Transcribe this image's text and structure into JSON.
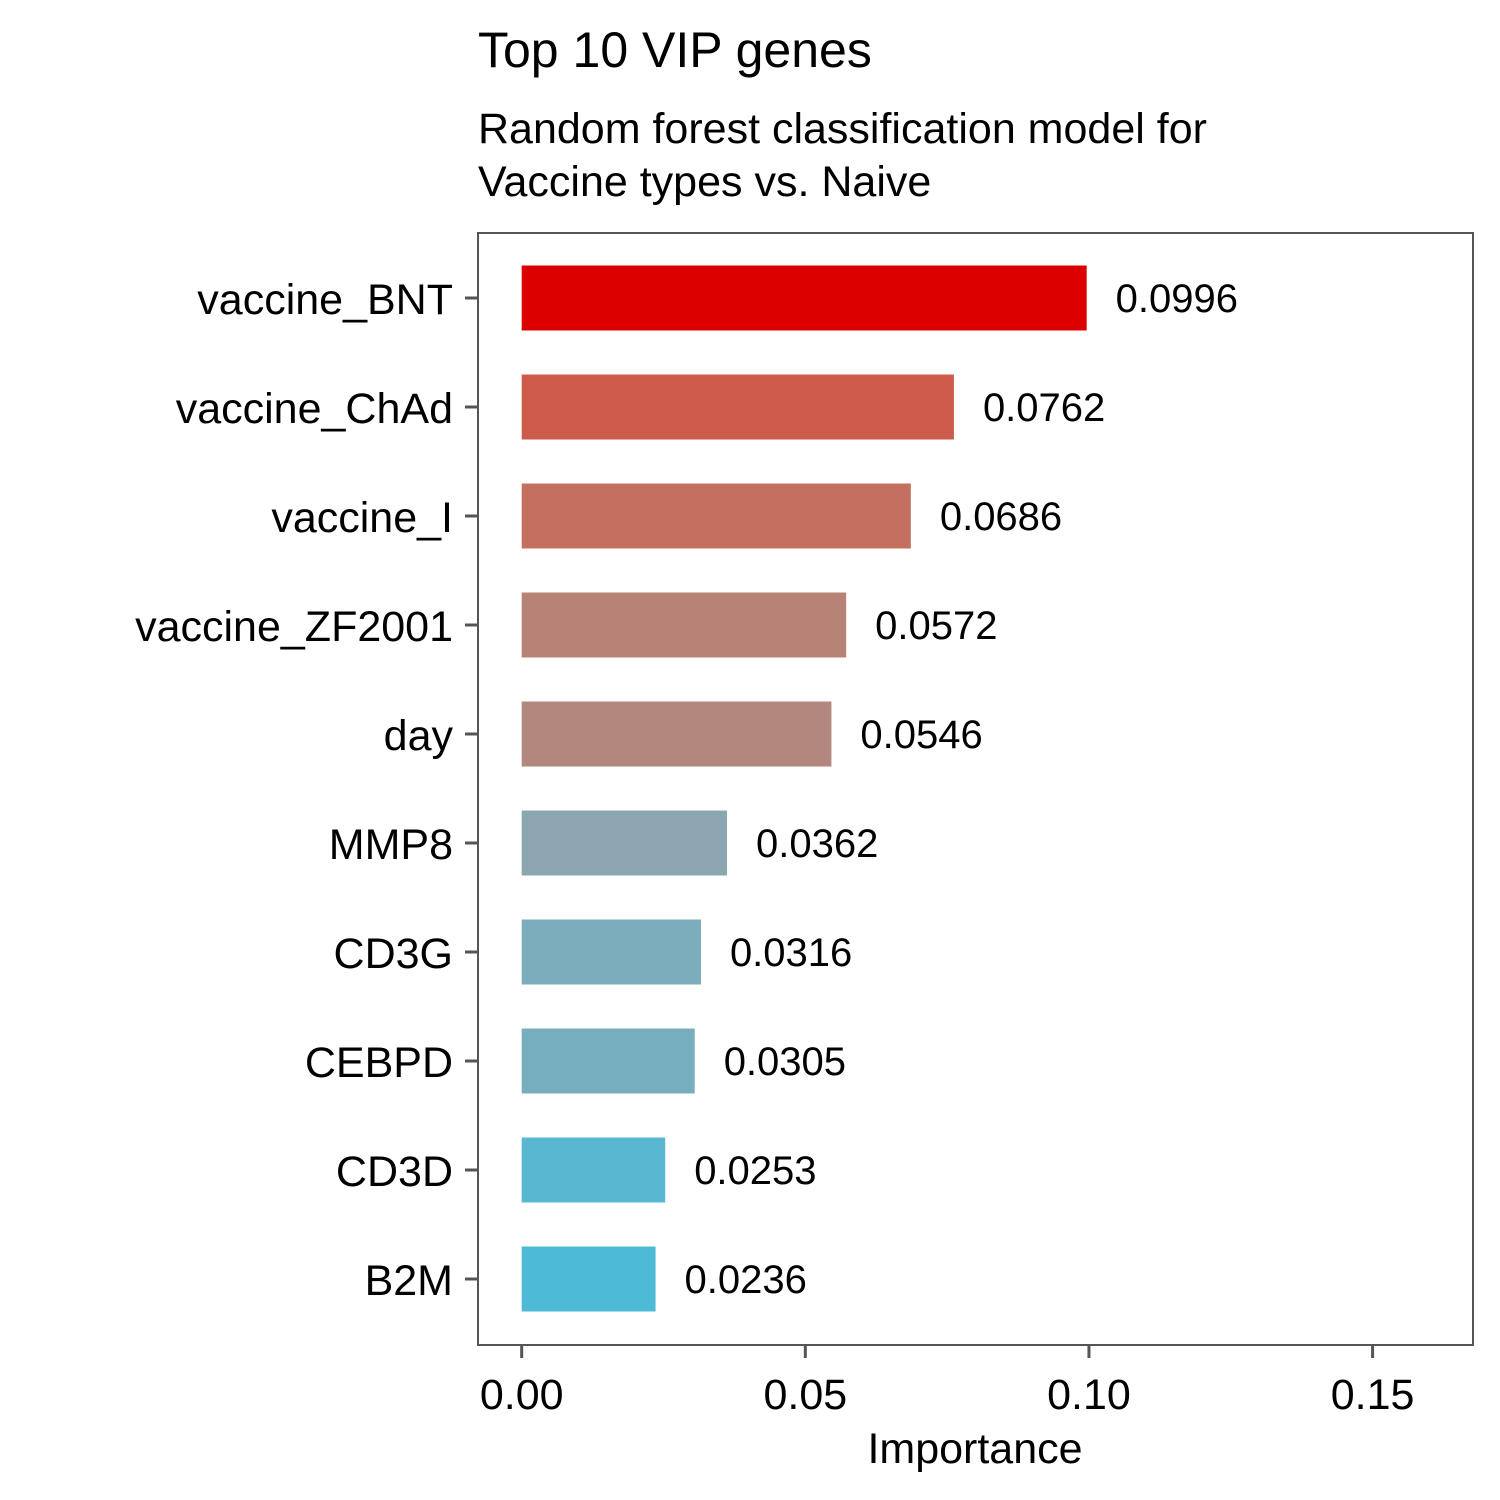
{
  "chart_data": {
    "type": "bar",
    "orientation": "horizontal",
    "title": "Top 10 VIP genes",
    "subtitle_lines": [
      "Random forest classification model for",
      "Vaccine types vs. Naive"
    ],
    "xlabel": "Importance",
    "ylabel": "",
    "xlim": [
      -0.0077,
      0.1677
    ],
    "xticks": [
      0.0,
      0.05,
      0.1,
      0.15
    ],
    "xtick_labels": [
      "0.00",
      "0.05",
      "0.10",
      "0.15"
    ],
    "grid": false,
    "legend": "none",
    "categories": [
      "vaccine_BNT",
      "vaccine_ChAd",
      "vaccine_I",
      "vaccine_ZF2001",
      "day",
      "MMP8",
      "CD3G",
      "CEBPD",
      "CD3D",
      "B2M"
    ],
    "values": [
      0.0996,
      0.0762,
      0.0686,
      0.0572,
      0.0546,
      0.0362,
      0.0316,
      0.0305,
      0.0253,
      0.0236
    ],
    "value_labels": [
      "0.0996",
      "0.0762",
      "0.0686",
      "0.0572",
      "0.0546",
      "0.0362",
      "0.0316",
      "0.0305",
      "0.0253",
      "0.0236"
    ],
    "colors": [
      "#DD0000",
      "#CD5D4A",
      "#C5705E",
      "#B78376",
      "#B2877E",
      "#8BA6B0",
      "#7BADBD",
      "#76AEBE",
      "#59B8D1",
      "#4DBAD6"
    ],
    "panel_border_color": "#555555"
  }
}
